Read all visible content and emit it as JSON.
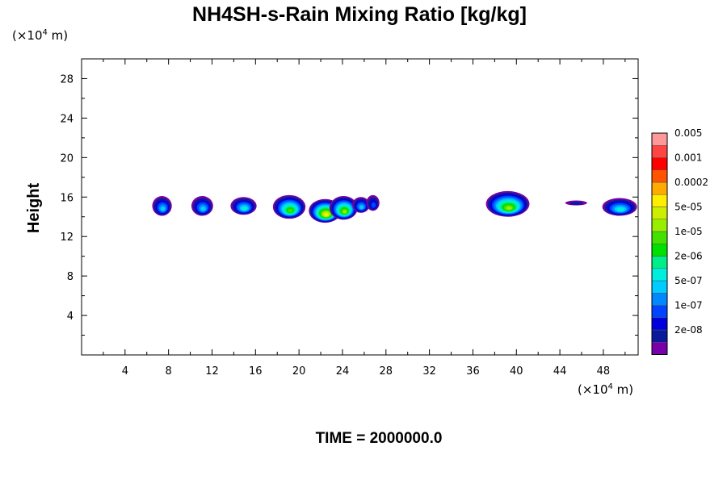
{
  "chart_data": {
    "type": "heatmap",
    "title": "NH4SH-s-Rain Mixing Ratio [kg/kg]",
    "ylabel": "Height",
    "y_unit": {
      "prefix": "(×10",
      "exp": "4",
      "suffix": " m)"
    },
    "x_unit": {
      "prefix": "(×10",
      "exp": "4",
      "suffix": " m)"
    },
    "xlim": [
      0,
      51.2
    ],
    "ylim": [
      0,
      30
    ],
    "x_ticks": [
      4,
      8,
      12,
      16,
      20,
      24,
      28,
      32,
      36,
      40,
      44,
      48
    ],
    "y_ticks": [
      4,
      8,
      12,
      16,
      20,
      24,
      28
    ],
    "footer": "TIME = 2000000.0",
    "colorbar": {
      "colors": [
        "#7700aa",
        "#0a1a9a",
        "#0000dd",
        "#0044ff",
        "#0088ff",
        "#00ccff",
        "#00eedd",
        "#00ee88",
        "#00e000",
        "#44e000",
        "#99ee00",
        "#ccee00",
        "#ffee00",
        "#ffaa00",
        "#ff5500",
        "#ff0000",
        "#ff4444",
        "#ff9999"
      ],
      "labels": [
        "2e-08",
        "1e-07",
        "5e-07",
        "2e-06",
        "1e-05",
        "5e-05",
        "0.0002",
        "0.001",
        "0.005"
      ]
    },
    "cells": [
      {
        "x": 7.4,
        "y": 15.1,
        "rx": 0.9,
        "ry": 1.0,
        "peak": 5
      },
      {
        "x": 11.1,
        "y": 15.1,
        "rx": 1.0,
        "ry": 1.0,
        "peak": 5
      },
      {
        "x": 14.9,
        "y": 15.1,
        "rx": 1.2,
        "ry": 0.9,
        "peak": 6
      },
      {
        "x": 19.1,
        "y": 15.0,
        "rx": 1.5,
        "ry": 1.2,
        "peak": 9
      },
      {
        "x": 22.4,
        "y": 14.6,
        "rx": 1.5,
        "ry": 1.2,
        "peak": 12
      },
      {
        "x": 24.1,
        "y": 14.9,
        "rx": 1.3,
        "ry": 1.2,
        "peak": 10
      },
      {
        "x": 25.7,
        "y": 15.2,
        "rx": 0.8,
        "ry": 0.8,
        "peak": 5
      },
      {
        "x": 26.8,
        "y": 15.4,
        "rx": 0.6,
        "ry": 0.8,
        "peak": 3
      },
      {
        "x": 39.2,
        "y": 15.3,
        "rx": 2.0,
        "ry": 1.3,
        "peak": 10
      },
      {
        "x": 45.5,
        "y": 15.4,
        "rx": 1.0,
        "ry": 0.25,
        "peak": 1
      },
      {
        "x": 49.5,
        "y": 15.0,
        "rx": 1.6,
        "ry": 0.9,
        "peak": 6
      }
    ]
  }
}
